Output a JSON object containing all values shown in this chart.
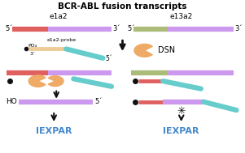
{
  "title": "BCR-ABL fusion transcripts",
  "left_label": "e1a2",
  "right_label": "e13a2",
  "blue": "#4488cc",
  "red": "#e06060",
  "purple": "#cc99ee",
  "olive": "#aabc78",
  "teal": "#66cccc",
  "probe": "#eecc99",
  "dsn": "#eeaa66",
  "black": "#111111",
  "white": "#ffffff",
  "lw_strand": 4.5,
  "lw_probe": 3.5,
  "figw": 3.01,
  "figh": 1.89,
  "dpi": 100
}
